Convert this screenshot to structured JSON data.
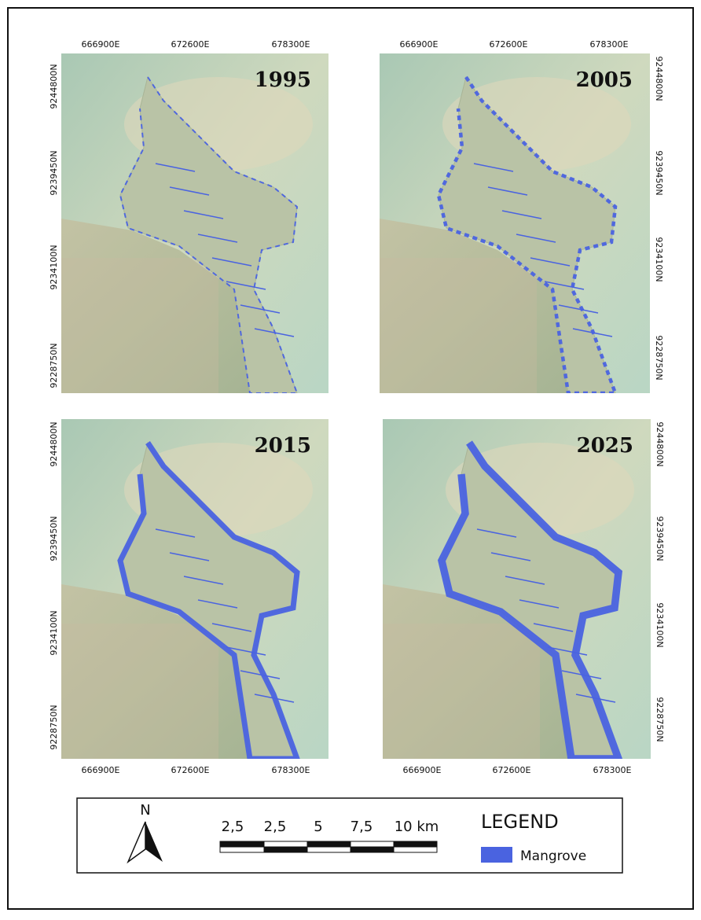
{
  "panels": [
    {
      "year": "1995",
      "x_labels": [
        "666900E",
        "672600E",
        "678300E"
      ],
      "y_labels": [
        "9244800N",
        "9239450N",
        "9234100N",
        "9228750N"
      ]
    },
    {
      "year": "2005",
      "x_labels": [
        "666900E",
        "672600E",
        "678300E"
      ],
      "y_labels": [
        "9244800N",
        "9239450N",
        "9234100N",
        "9228750N"
      ]
    },
    {
      "year": "2015",
      "x_labels": [
        "666900E",
        "672600E",
        "678300E"
      ],
      "y_labels": [
        "9244800N",
        "9239450N",
        "9234100N",
        "9228750N"
      ]
    },
    {
      "year": "2025",
      "x_labels": [
        "666900E",
        "672600E",
        "678300E"
      ],
      "y_labels": [
        "9244800N",
        "9239450N",
        "9234100N",
        "9228750N"
      ]
    }
  ],
  "north_arrow": "N",
  "scale_bar": [
    "2,5",
    "2,5",
    "5",
    "7,5",
    "10 km"
  ],
  "legend": {
    "title": "LEGEND",
    "items": [
      "Mangrove"
    ]
  }
}
